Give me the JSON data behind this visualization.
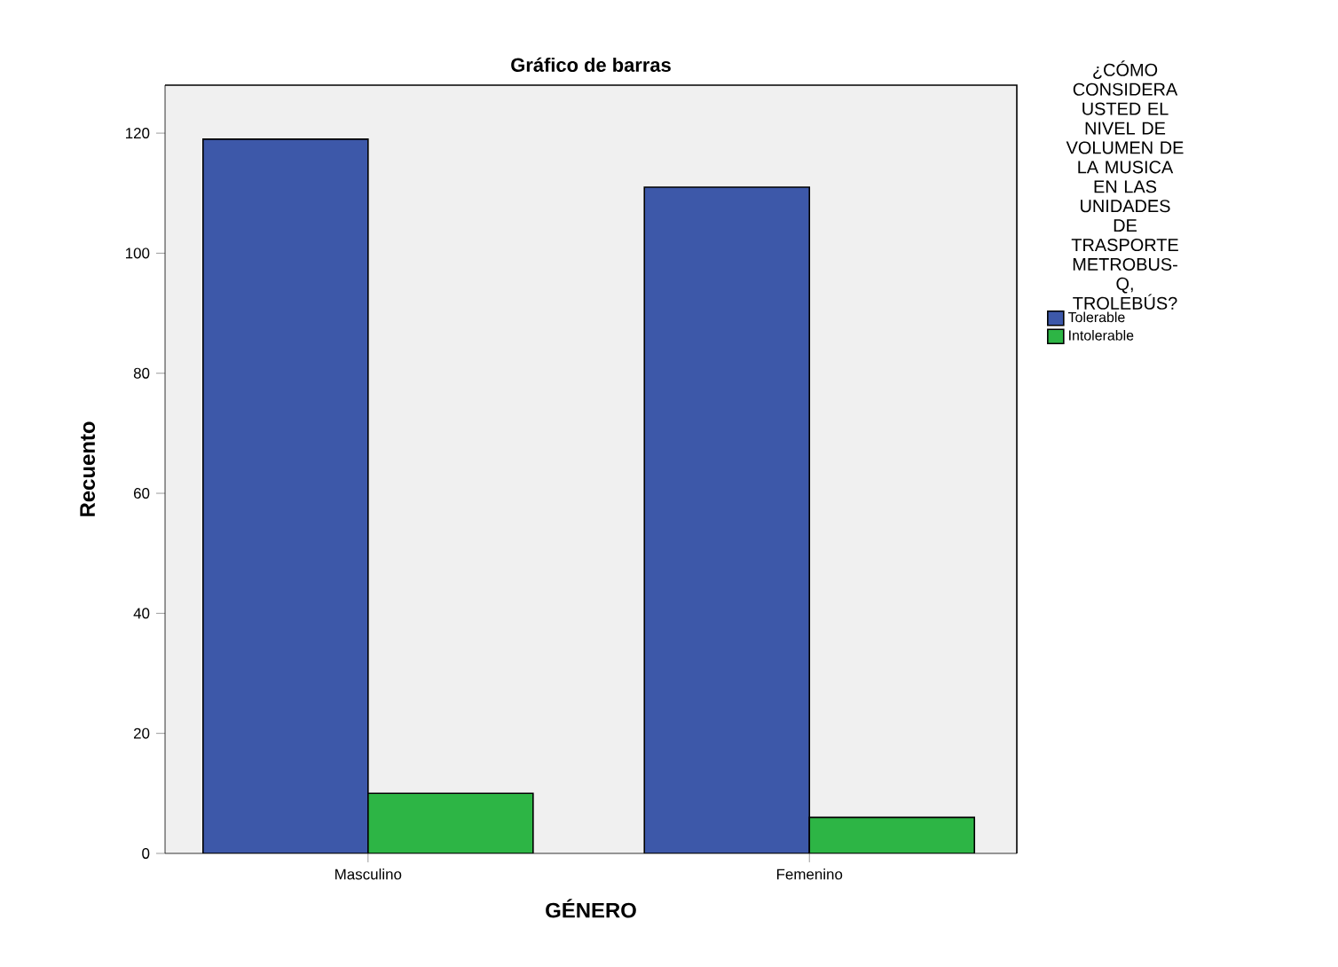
{
  "chart_data": {
    "type": "bar",
    "title": "Gráfico de barras",
    "xlabel": "GÉNERO",
    "ylabel": "Recuento",
    "legend_title": "¿CÓMO CONSIDERA USTED EL NIVEL DE VOLUMEN DE LA MUSICA EN LAS UNIDADES DE TRASPORTE METROBUS-Q, TROLEBÚS?",
    "categories": [
      "Masculino",
      "Femenino"
    ],
    "series": [
      {
        "name": "Tolerable",
        "color": "#3d58a9",
        "values": [
          119,
          111
        ]
      },
      {
        "name": "Intolerable",
        "color": "#2db545",
        "values": [
          10,
          6
        ]
      }
    ],
    "ylim": [
      0,
      128
    ],
    "yticks": [
      0,
      20,
      40,
      60,
      80,
      100,
      120
    ],
    "grid": false,
    "legend": "right"
  }
}
